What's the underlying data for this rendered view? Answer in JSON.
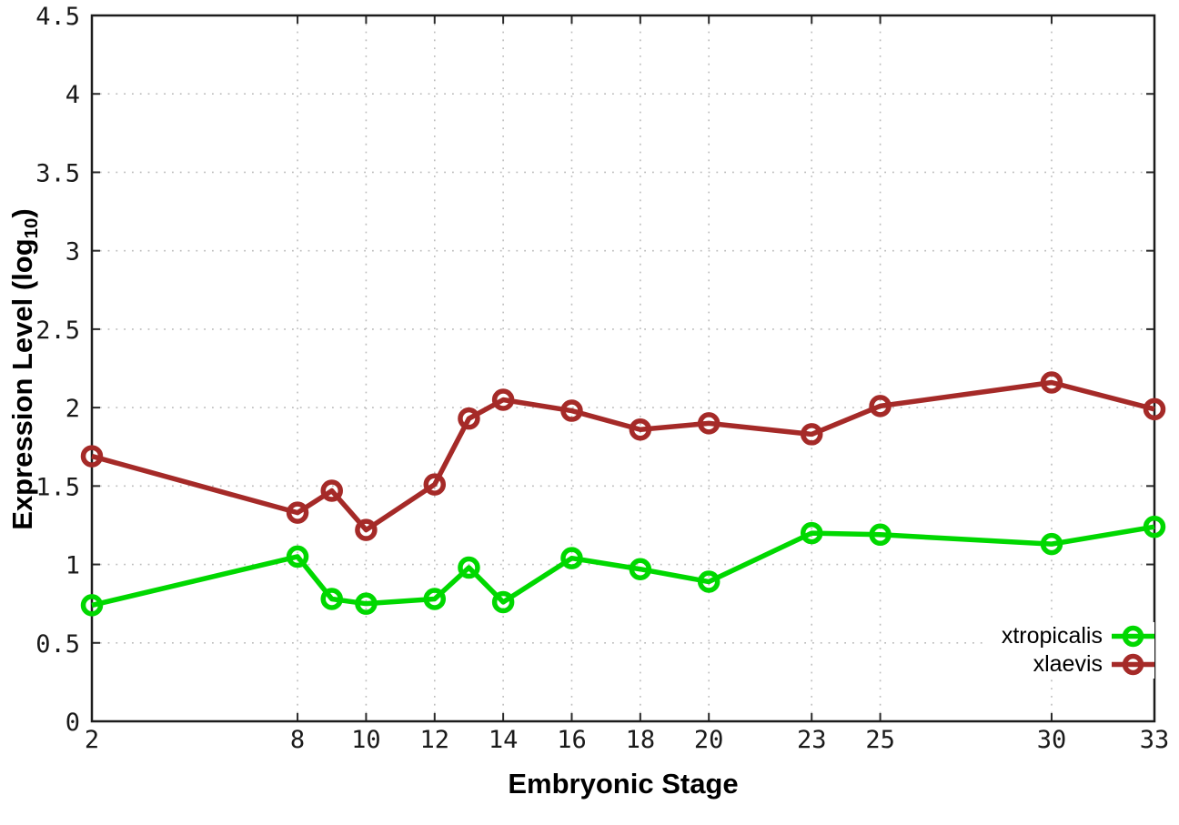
{
  "figure": {
    "background": "#ffffff",
    "border_color": "#1c1c1c",
    "grid_color": "#bcbcbc",
    "tick_color": "#2a2a2a"
  },
  "labels": {
    "xlabel": "Embryonic Stage",
    "ylabel_prefix": "Expression Level (log",
    "ylabel_sub": "10",
    "ylabel_suffix": ")"
  },
  "chart_data": {
    "type": "line",
    "title": "",
    "xlabel": "Embryonic Stage",
    "ylabel": "Expression Level (log10)",
    "x": [
      2,
      8,
      9,
      10,
      12,
      13,
      14,
      16,
      18,
      20,
      23,
      25,
      30,
      33
    ],
    "series": [
      {
        "name": "xtropicalis",
        "color": "#00d800",
        "marker": "open-circle",
        "values": [
          0.74,
          1.05,
          0.78,
          0.75,
          0.78,
          0.98,
          0.76,
          1.04,
          0.97,
          0.89,
          1.2,
          1.19,
          1.13,
          1.24
        ]
      },
      {
        "name": "xlaevis",
        "color": "#a52a28",
        "marker": "open-circle",
        "values": [
          1.69,
          1.33,
          1.47,
          1.22,
          1.51,
          1.93,
          2.05,
          1.98,
          1.86,
          1.9,
          1.83,
          2.01,
          2.16,
          1.99
        ]
      }
    ],
    "xlim": [
      2,
      33
    ],
    "ylim": [
      0,
      4.5
    ],
    "xticks": [
      2,
      8,
      10,
      12,
      14,
      16,
      18,
      20,
      23,
      25,
      30,
      33
    ],
    "xtick_labels": [
      "2",
      "8",
      "10",
      "12",
      "14",
      "16",
      "18",
      "20",
      "23",
      "25",
      "30",
      "33"
    ],
    "yticks": [
      0,
      0.5,
      1,
      1.5,
      2,
      2.5,
      3,
      3.5,
      4,
      4.5
    ],
    "ytick_labels": [
      "0",
      "0.5",
      "1",
      "1.5",
      "2",
      "2.5",
      "3",
      "3.5",
      "4",
      "4.5"
    ],
    "grid": true,
    "grid_style": "dotted",
    "legend_position": "inside bottom-right",
    "legend_opaque": true
  }
}
